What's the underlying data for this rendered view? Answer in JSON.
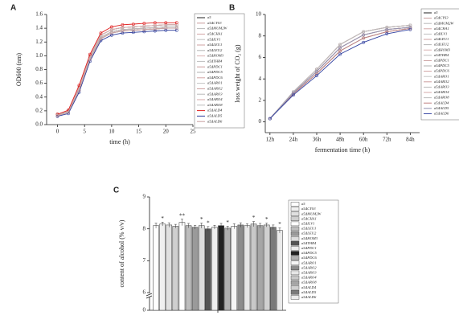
{
  "chart_data": [
    {
      "type": "line",
      "panel_label": "A",
      "x_label": "time (h)",
      "y_label": "OD600 (nm)",
      "x": [
        0,
        2,
        4,
        6,
        8,
        10,
        12,
        14,
        16,
        18,
        20,
        22
      ],
      "xlim": [
        -2,
        25
      ],
      "xticks": [
        0,
        5,
        10,
        15,
        20,
        25
      ],
      "ylim": [
        0,
        1.6
      ],
      "yticks": [
        {
          "value": 0,
          "label": "0.0"
        },
        {
          "value": 0.2,
          "label": "0.2"
        },
        {
          "value": 0.4,
          "label": "0.4"
        },
        {
          "value": 0.6,
          "label": "0.6"
        },
        {
          "value": 0.8,
          "label": "0.8"
        },
        {
          "value": 1,
          "label": "1.0"
        },
        {
          "value": 1.2,
          "label": "1.2"
        },
        {
          "value": 1.4,
          "label": "1.4"
        },
        {
          "value": 1.6,
          "label": "1.6"
        }
      ],
      "legend": "right",
      "series": [
        {
          "name": "a5",
          "color": "#222222",
          "values": [
            0.15,
            0.2,
            0.55,
            1.0,
            1.3,
            1.38,
            1.41,
            1.42,
            1.43,
            1.44,
            1.45,
            1.45
          ]
        },
        {
          "name": "a5ΔCYS3",
          "color": "#c79a9a",
          "values": [
            0.14,
            0.19,
            0.52,
            0.97,
            1.27,
            1.35,
            1.38,
            1.39,
            1.4,
            1.41,
            1.42,
            1.42
          ]
        },
        {
          "name": "a5ΔMUM2W",
          "color": "#b8b8b8",
          "values": [
            0.13,
            0.18,
            0.5,
            0.95,
            1.25,
            1.33,
            1.36,
            1.37,
            1.38,
            1.39,
            1.4,
            1.4
          ]
        },
        {
          "name": "a5ΔCHA1",
          "color": "#d4a8a8",
          "values": [
            0.15,
            0.2,
            0.55,
            1.0,
            1.3,
            1.38,
            1.41,
            1.42,
            1.43,
            1.44,
            1.45,
            1.45
          ]
        },
        {
          "name": "a5ΔILV1",
          "color": "#c0c0c0",
          "values": [
            0.14,
            0.19,
            0.52,
            0.97,
            1.27,
            1.35,
            1.38,
            1.39,
            1.4,
            1.41,
            1.42,
            1.42
          ]
        },
        {
          "name": "a5ΔLEU1",
          "color": "#cfa0a0",
          "values": [
            0.13,
            0.18,
            0.5,
            0.95,
            1.25,
            1.33,
            1.36,
            1.37,
            1.38,
            1.39,
            1.4,
            1.4
          ]
        },
        {
          "name": "a5ΔLEU2",
          "color": "#b5b5b5",
          "values": [
            0.15,
            0.2,
            0.55,
            1.0,
            1.3,
            1.38,
            1.41,
            1.42,
            1.43,
            1.44,
            1.45,
            1.45
          ]
        },
        {
          "name": "a5ΔHOM3",
          "color": "#d8b0b0",
          "values": [
            0.14,
            0.19,
            0.52,
            0.97,
            1.27,
            1.35,
            1.38,
            1.39,
            1.4,
            1.41,
            1.42,
            1.42
          ]
        },
        {
          "name": "a5ΔTHR4",
          "color": "#bdbdbd",
          "values": [
            0.13,
            0.18,
            0.5,
            0.95,
            1.25,
            1.33,
            1.36,
            1.37,
            1.38,
            1.39,
            1.4,
            1.4
          ]
        },
        {
          "name": "a5ΔPDC1",
          "color": "#c99c9c",
          "values": [
            0.15,
            0.2,
            0.55,
            1.0,
            1.3,
            1.38,
            1.41,
            1.42,
            1.43,
            1.44,
            1.45,
            1.45
          ]
        },
        {
          "name": "a5ΔPDC5",
          "color": "#b0b0b0",
          "values": [
            0.14,
            0.19,
            0.52,
            0.97,
            1.27,
            1.35,
            1.38,
            1.39,
            1.4,
            1.41,
            1.42,
            1.42
          ]
        },
        {
          "name": "a5ΔPDC6",
          "color": "#d2a4a4",
          "values": [
            0.13,
            0.18,
            0.5,
            0.95,
            1.25,
            1.33,
            1.36,
            1.37,
            1.38,
            1.39,
            1.4,
            1.4
          ]
        },
        {
          "name": "a5ΔARO1",
          "color": "#c4c4c4",
          "values": [
            0.15,
            0.2,
            0.55,
            1.0,
            1.3,
            1.38,
            1.41,
            1.42,
            1.43,
            1.44,
            1.45,
            1.45
          ]
        },
        {
          "name": "a5ΔARO2",
          "color": "#cc9f9f",
          "values": [
            0.14,
            0.19,
            0.52,
            0.97,
            1.27,
            1.35,
            1.38,
            1.39,
            1.4,
            1.41,
            1.42,
            1.42
          ]
        },
        {
          "name": "a5ΔARO3",
          "color": "#b9b9b9",
          "values": [
            0.13,
            0.18,
            0.5,
            0.95,
            1.25,
            1.33,
            1.36,
            1.37,
            1.38,
            1.39,
            1.4,
            1.4
          ]
        },
        {
          "name": "a5ΔARO4",
          "color": "#d6aaaa",
          "values": [
            0.15,
            0.2,
            0.55,
            1.0,
            1.3,
            1.38,
            1.41,
            1.42,
            1.43,
            1.44,
            1.45,
            1.45
          ]
        },
        {
          "name": "a5ΔARO8",
          "color": "#bbbbbb",
          "values": [
            0.14,
            0.19,
            0.52,
            0.97,
            1.27,
            1.35,
            1.38,
            1.39,
            1.4,
            1.41,
            1.42,
            1.42
          ]
        },
        {
          "name": "a5ΔALD4",
          "color": "#e02020",
          "values": [
            0.15,
            0.21,
            0.57,
            1.02,
            1.33,
            1.42,
            1.45,
            1.46,
            1.47,
            1.48,
            1.48,
            1.48
          ]
        },
        {
          "name": "a5ΔALD5",
          "color": "#2a3a9a",
          "values": [
            0.12,
            0.16,
            0.47,
            0.92,
            1.22,
            1.3,
            1.33,
            1.34,
            1.35,
            1.36,
            1.37,
            1.37
          ]
        },
        {
          "name": "a5ΔALD6",
          "color": "#c8a0a0",
          "values": [
            0.13,
            0.18,
            0.5,
            0.95,
            1.25,
            1.33,
            1.36,
            1.37,
            1.38,
            1.39,
            1.4,
            1.4
          ]
        }
      ]
    },
    {
      "type": "line",
      "panel_label": "B",
      "x_label": "fermentation time (h)",
      "y_label": "loss weight of CO₂ (g)",
      "categories": [
        "12h",
        "24h",
        "36h",
        "48h",
        "60h",
        "72h",
        "84h"
      ],
      "ylim": [
        -1,
        10
      ],
      "yticks": [
        0,
        2,
        4,
        6,
        8,
        10
      ],
      "legend": "right",
      "series": [
        {
          "name": "a5",
          "color": "#222222",
          "values": [
            0.3,
            2.7,
            4.7,
            6.9,
            8.1,
            8.6,
            8.8
          ]
        },
        {
          "name": "a5ΔCYS3",
          "color": "#c79a9a",
          "values": [
            0.3,
            2.8,
            4.9,
            7.2,
            8.4,
            8.8,
            9.0
          ]
        },
        {
          "name": "a5ΔMUM2W",
          "color": "#b8b8b8",
          "values": [
            0.3,
            2.6,
            4.5,
            6.6,
            7.8,
            8.4,
            8.7
          ]
        },
        {
          "name": "a5ΔCHA1",
          "color": "#d4a8a8",
          "values": [
            0.3,
            2.7,
            4.7,
            6.9,
            8.1,
            8.6,
            8.8
          ]
        },
        {
          "name": "a5ΔILV1",
          "color": "#c0c0c0",
          "values": [
            0.3,
            2.8,
            4.9,
            7.2,
            8.4,
            8.8,
            9.0
          ]
        },
        {
          "name": "a5ΔLEU1",
          "color": "#cfa0a0",
          "values": [
            0.3,
            2.6,
            4.5,
            6.6,
            7.8,
            8.4,
            8.7
          ]
        },
        {
          "name": "a5ΔLEU2",
          "color": "#b5b5b5",
          "values": [
            0.3,
            2.7,
            4.7,
            6.9,
            8.1,
            8.6,
            8.8
          ]
        },
        {
          "name": "a5ΔHOM3",
          "color": "#d8b0b0",
          "values": [
            0.3,
            2.8,
            4.9,
            7.2,
            8.4,
            8.8,
            9.0
          ]
        },
        {
          "name": "a5ΔTHR4",
          "color": "#bdbdbd",
          "values": [
            0.3,
            2.6,
            4.5,
            6.6,
            7.8,
            8.4,
            8.7
          ]
        },
        {
          "name": "a5ΔPDC1",
          "color": "#c99c9c",
          "values": [
            0.3,
            2.7,
            4.7,
            6.9,
            8.1,
            8.6,
            8.8
          ]
        },
        {
          "name": "a5ΔPDC5",
          "color": "#b0b0b0",
          "values": [
            0.3,
            2.8,
            4.9,
            7.2,
            8.4,
            8.8,
            9.0
          ]
        },
        {
          "name": "a5ΔPDC6",
          "color": "#d2a4a4",
          "values": [
            0.3,
            2.6,
            4.5,
            6.6,
            7.8,
            8.4,
            8.7
          ]
        },
        {
          "name": "a5ΔARO1",
          "color": "#c4c4c4",
          "values": [
            0.3,
            2.7,
            4.7,
            6.9,
            8.1,
            8.6,
            8.8
          ]
        },
        {
          "name": "a5ΔARO2",
          "color": "#cc9f9f",
          "values": [
            0.3,
            2.8,
            4.9,
            7.2,
            8.4,
            8.8,
            9.0
          ]
        },
        {
          "name": "a5ΔARO3",
          "color": "#b9b9b9",
          "values": [
            0.3,
            2.6,
            4.5,
            6.6,
            7.8,
            8.4,
            8.7
          ]
        },
        {
          "name": "a5ΔARO4",
          "color": "#d6aaaa",
          "values": [
            0.3,
            2.7,
            4.7,
            6.9,
            8.1,
            8.6,
            8.8
          ]
        },
        {
          "name": "a5ΔARO8",
          "color": "#bbbbbb",
          "values": [
            0.3,
            2.8,
            4.9,
            7.2,
            8.4,
            8.8,
            9.0
          ]
        },
        {
          "name": "a5ΔALD4",
          "color": "#c08080",
          "values": [
            0.3,
            2.6,
            4.5,
            6.6,
            7.8,
            8.4,
            8.7
          ]
        },
        {
          "name": "a5ΔALD5",
          "color": "#9090b0",
          "values": [
            0.3,
            2.7,
            4.7,
            6.9,
            8.1,
            8.6,
            8.8
          ]
        },
        {
          "name": "a5ΔALD6",
          "color": "#3040a0",
          "values": [
            0.3,
            2.5,
            4.3,
            6.3,
            7.4,
            8.2,
            8.6
          ]
        }
      ]
    },
    {
      "type": "bar",
      "panel_label": "C",
      "y_label": "content of alcohol (% v/v)",
      "categories": [
        "a5",
        "a5ΔCYS3",
        "a5ΔMUM2W",
        "a5ΔCHA1",
        "a5ΔILV1",
        "a5ΔLEU1",
        "a5ΔLEU2",
        "a5ΔHOM3",
        "a5ΔTHR4",
        "a5ΔPDC1",
        "a5ΔPDC5",
        "a5ΔPDC6",
        "a5ΔARO1",
        "a5ΔARO2",
        "a5ΔARO3",
        "a5ΔARO4",
        "a5ΔARO8",
        "a5ΔALD4",
        "a5ΔALD5",
        "a5ΔALD6"
      ],
      "values": [
        8.1,
        8.15,
        8.12,
        8.08,
        8.2,
        8.1,
        8.05,
        8.1,
        8.0,
        8.05,
        8.1,
        8.02,
        8.08,
        8.12,
        8.1,
        8.15,
        8.1,
        8.12,
        8.05,
        7.95
      ],
      "errors": [
        0.08,
        0.06,
        0.07,
        0.06,
        0.1,
        0.07,
        0.06,
        0.08,
        0.07,
        0.06,
        0.07,
        0.06,
        0.08,
        0.07,
        0.06,
        0.08,
        0.07,
        0.06,
        0.07,
        0.08
      ],
      "colors": [
        "#ffffff",
        "#f0f0f0",
        "#e0e0e0",
        "#cfcfcf",
        "#ffffff",
        "#bdbdbd",
        "#9a9a9a",
        "#dddddd",
        "#555555",
        "#eeeeee",
        "#222222",
        "#b0b0b0",
        "#f5f5f5",
        "#8c8c8c",
        "#e6e6e6",
        "#c8c8c8",
        "#a6a6a6",
        "#d0d0d0",
        "#7a7a7a",
        "#ebebeb"
      ],
      "annotations": [
        {
          "index": 1,
          "text": "*"
        },
        {
          "index": 4,
          "text": "**"
        },
        {
          "index": 7,
          "text": "*"
        },
        {
          "index": 8,
          "text": "*"
        },
        {
          "index": 11,
          "text": "*"
        },
        {
          "index": 15,
          "text": "*"
        },
        {
          "index": 17,
          "text": "*"
        },
        {
          "index": 19,
          "text": "*"
        }
      ],
      "ylim": [
        0,
        9
      ],
      "yticks": [
        0,
        6,
        7,
        8,
        9
      ],
      "axis_break": 6,
      "legend": "right"
    }
  ]
}
